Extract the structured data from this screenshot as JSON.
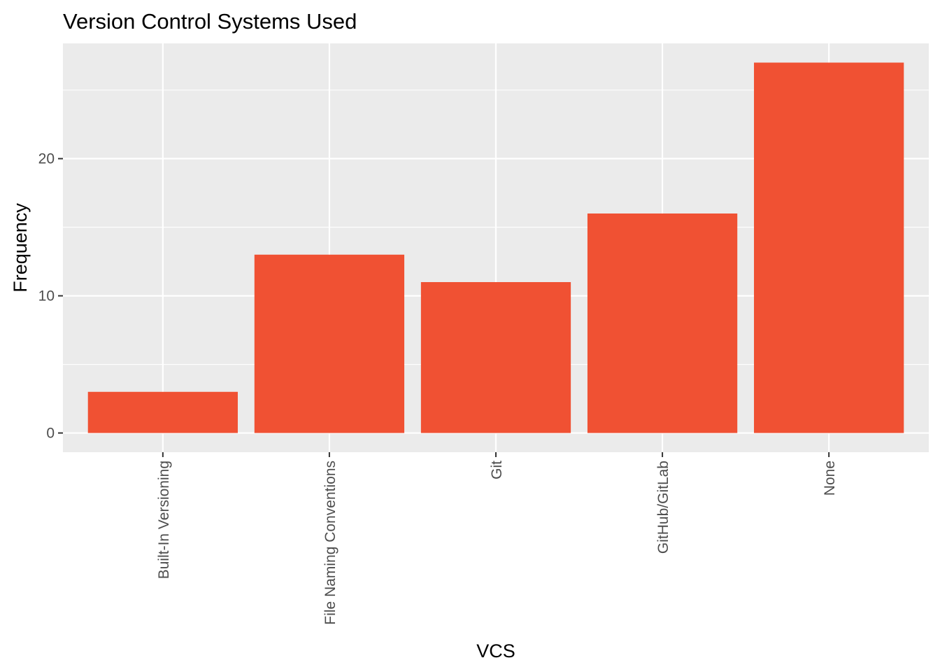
{
  "chart_data": {
    "type": "bar",
    "title": "Version Control Systems Used",
    "xlabel": "VCS",
    "ylabel": "Frequency",
    "categories": [
      "Built-In Versioning",
      "File Naming Conventions",
      "Git",
      "GitHub/GitLab",
      "None"
    ],
    "values": [
      3,
      13,
      11,
      16,
      27
    ],
    "ylim": [
      -1.4,
      28.4
    ],
    "yticks": [
      0,
      10,
      20
    ],
    "grid": true,
    "legend": "none",
    "colors": {
      "bar": "#F05133",
      "panel_background": "#EBEBEB",
      "grid": "#FFFFFF",
      "tick_label": "#4D4D4D",
      "tick_mark": "#333333"
    }
  }
}
